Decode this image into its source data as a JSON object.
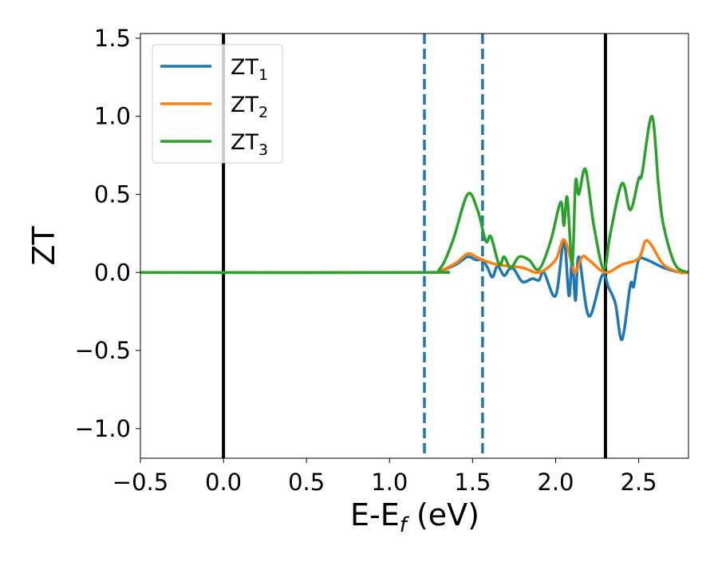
{
  "chart_data": {
    "type": "line",
    "title": "",
    "xlabel": "E-E",
    "xlabel_sub": "f",
    "xlabel_unit": " (eV)",
    "ylabel": "ZT",
    "xlim": [
      -0.5,
      2.8
    ],
    "ylim": [
      -1.19,
      1.53
    ],
    "xticks": [
      -0.5,
      0.0,
      0.5,
      1.0,
      1.5,
      2.0,
      2.5
    ],
    "xtick_labels": [
      "−0.5",
      "0.0",
      "0.5",
      "1.0",
      "1.5",
      "2.0",
      "2.5"
    ],
    "yticks": [
      -1.0,
      -0.5,
      0.0,
      0.5,
      1.0,
      1.5
    ],
    "ytick_labels": [
      "−1.0",
      "−0.5",
      "0.0",
      "0.5",
      "1.0",
      "1.5"
    ],
    "grid": false,
    "legend_position": "top-left",
    "vlines": [
      {
        "x": 0.0,
        "style": "solid",
        "color": "#000000"
      },
      {
        "x": 2.3,
        "style": "solid",
        "color": "#000000"
      },
      {
        "x": 1.21,
        "style": "dashed",
        "color": "#1f77b4"
      },
      {
        "x": 1.56,
        "style": "dashed",
        "color": "#1f77b4"
      }
    ],
    "series": [
      {
        "name": "ZT",
        "sub": "1",
        "color": "#1f77b4",
        "x": [
          -0.5,
          1.2,
          1.3,
          1.4,
          1.47,
          1.52,
          1.56,
          1.59,
          1.62,
          1.65,
          1.69,
          1.72,
          1.75,
          1.8,
          1.86,
          1.9,
          1.93,
          2.0,
          2.05,
          2.08,
          2.1,
          2.12,
          2.14,
          2.2,
          2.28,
          2.32,
          2.36,
          2.4,
          2.45,
          2.47,
          2.5,
          2.55,
          2.65,
          2.75,
          2.8
        ],
        "y": [
          0,
          0,
          0.01,
          0.05,
          0.1,
          0.08,
          0.08,
          0.03,
          -0.03,
          0.04,
          -0.02,
          0.02,
          0.02,
          -0.06,
          -0.04,
          -0.05,
          0.0,
          -0.15,
          0.2,
          -0.15,
          0.08,
          -0.18,
          0.1,
          -0.28,
          -0.02,
          -0.1,
          -0.2,
          -0.43,
          -0.08,
          -0.09,
          0.08,
          0.08,
          0.03,
          0.0,
          0.0
        ]
      },
      {
        "name": "ZT",
        "sub": "2",
        "color": "#ff7f0e",
        "x": [
          -0.5,
          1.2,
          1.3,
          1.4,
          1.47,
          1.52,
          1.56,
          1.65,
          1.8,
          1.9,
          2.0,
          2.05,
          2.1,
          2.12,
          2.16,
          2.2,
          2.3,
          2.4,
          2.5,
          2.54,
          2.58,
          2.65,
          2.75,
          2.8
        ],
        "y": [
          0,
          0,
          0.01,
          0.06,
          0.12,
          0.1,
          0.08,
          0.05,
          0.03,
          0.0,
          0.08,
          0.21,
          0.05,
          0.0,
          0.1,
          0.08,
          0.0,
          0.05,
          0.09,
          0.2,
          0.17,
          0.05,
          0.0,
          0.0
        ]
      },
      {
        "name": "ZT",
        "sub": "3",
        "color": "#2ca02c",
        "x": [
          -0.5,
          1.2,
          1.3,
          1.38,
          1.47,
          1.53,
          1.58,
          1.61,
          1.66,
          1.69,
          1.73,
          1.78,
          1.84,
          1.9,
          1.97,
          2.03,
          2.05,
          2.07,
          2.1,
          2.12,
          2.14,
          2.18,
          2.23,
          2.29,
          2.33,
          2.4,
          2.45,
          2.5,
          2.52,
          2.58,
          2.62,
          2.65,
          2.72,
          2.8
        ],
        "y": [
          0,
          0,
          0.02,
          0.2,
          0.5,
          0.4,
          0.2,
          0.23,
          0.05,
          0.1,
          0.03,
          0.1,
          0.08,
          0.02,
          0.2,
          0.45,
          0.3,
          0.48,
          0.05,
          0.58,
          0.5,
          0.66,
          0.3,
          0.02,
          0.25,
          0.57,
          0.4,
          0.6,
          0.63,
          1.0,
          0.55,
          0.3,
          0.05,
          0.0
        ]
      }
    ]
  }
}
